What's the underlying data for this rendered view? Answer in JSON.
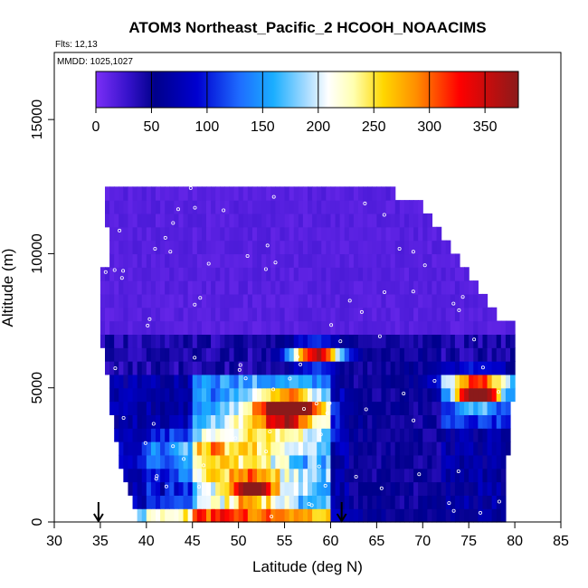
{
  "chart_data": {
    "type": "heatmap",
    "title": "ATOM3 Northeast_Pacific_2 HCOOH_NOAACIMS",
    "annotations": [
      "Flts: 12,13",
      "MMDD: 1025,1027"
    ],
    "xlabel": "Latitude (deg N)",
    "ylabel": "Altitude (m)",
    "xlim": [
      30,
      85
    ],
    "ylim": [
      0,
      17500
    ],
    "xticks": [
      "30",
      "35",
      "40",
      "45",
      "50",
      "55",
      "60",
      "65",
      "70",
      "75",
      "80",
      "85"
    ],
    "yticks": [
      "0",
      "5000",
      "10000",
      "15000"
    ],
    "colorbar": {
      "range": [
        0,
        380
      ],
      "ticks": [
        "0",
        "50",
        "100",
        "150",
        "200",
        "250",
        "300",
        "350"
      ],
      "placement": "top-inside"
    },
    "arrows_latitude": [
      34.8,
      61.2
    ],
    "row_height_m": 500,
    "rows": [
      {
        "alt": 250,
        "lat_min": 39.0,
        "lat_max": 79.0
      },
      {
        "alt": 750,
        "lat_min": 38.5,
        "lat_max": 79.0
      },
      {
        "alt": 1250,
        "lat_min": 38.0,
        "lat_max": 79.0
      },
      {
        "alt": 1750,
        "lat_min": 37.5,
        "lat_max": 79.0
      },
      {
        "alt": 2250,
        "lat_min": 37.0,
        "lat_max": 79.0
      },
      {
        "alt": 2750,
        "lat_min": 37.0,
        "lat_max": 79.5
      },
      {
        "alt": 3250,
        "lat_min": 36.5,
        "lat_max": 79.5
      },
      {
        "alt": 3750,
        "lat_min": 36.5,
        "lat_max": 79.5
      },
      {
        "alt": 4250,
        "lat_min": 36.0,
        "lat_max": 79.5
      },
      {
        "alt": 4750,
        "lat_min": 36.0,
        "lat_max": 80.0
      },
      {
        "alt": 5250,
        "lat_min": 36.0,
        "lat_max": 80.0
      },
      {
        "alt": 5750,
        "lat_min": 35.5,
        "lat_max": 80.0
      },
      {
        "alt": 6250,
        "lat_min": 35.5,
        "lat_max": 80.0
      },
      {
        "alt": 6750,
        "lat_min": 35.0,
        "lat_max": 80.0
      },
      {
        "alt": 7250,
        "lat_min": 35.0,
        "lat_max": 80.0
      },
      {
        "alt": 7750,
        "lat_min": 35.0,
        "lat_max": 78.0
      },
      {
        "alt": 8250,
        "lat_min": 35.0,
        "lat_max": 77.0
      },
      {
        "alt": 8750,
        "lat_min": 35.0,
        "lat_max": 76.0
      },
      {
        "alt": 9250,
        "lat_min": 35.0,
        "lat_max": 75.0
      },
      {
        "alt": 9750,
        "lat_min": 36.0,
        "lat_max": 74.0
      },
      {
        "alt": 10250,
        "lat_min": 36.0,
        "lat_max": 73.0
      },
      {
        "alt": 10750,
        "lat_min": 36.0,
        "lat_max": 72.0
      },
      {
        "alt": 11250,
        "lat_min": 35.5,
        "lat_max": 71.0
      },
      {
        "alt": 11750,
        "lat_min": 35.5,
        "lat_max": 70.0
      },
      {
        "alt": 12250,
        "lat_min": 35.5,
        "lat_max": 67.0
      }
    ],
    "hotspots": [
      {
        "lat": 58.5,
        "alt": 6250,
        "sig_lat": 2.0,
        "sig_alt": 280,
        "amp": 320
      },
      {
        "lat": 55.5,
        "alt": 4250,
        "sig_lat": 2.2,
        "sig_alt": 380,
        "amp": 270
      },
      {
        "lat": 54.0,
        "alt": 3750,
        "sig_lat": 4.0,
        "sig_alt": 700,
        "amp": 110
      },
      {
        "lat": 51.5,
        "alt": 1250,
        "sig_lat": 1.6,
        "sig_alt": 300,
        "amp": 210
      },
      {
        "lat": 50.0,
        "alt": 1750,
        "sig_lat": 4.0,
        "sig_alt": 700,
        "amp": 90
      },
      {
        "lat": 76.0,
        "alt": 4750,
        "sig_lat": 1.5,
        "sig_alt": 280,
        "amp": 310
      },
      {
        "lat": 76.0,
        "alt": 5250,
        "sig_lat": 3.0,
        "sig_alt": 350,
        "amp": 150
      },
      {
        "lat": 48.0,
        "alt": 250,
        "sig_lat": 8.0,
        "sig_alt": 300,
        "amp": 90
      },
      {
        "lat": 45.0,
        "alt": 2750,
        "sig_lat": 4.0,
        "sig_alt": 500,
        "amp": 80
      }
    ]
  }
}
